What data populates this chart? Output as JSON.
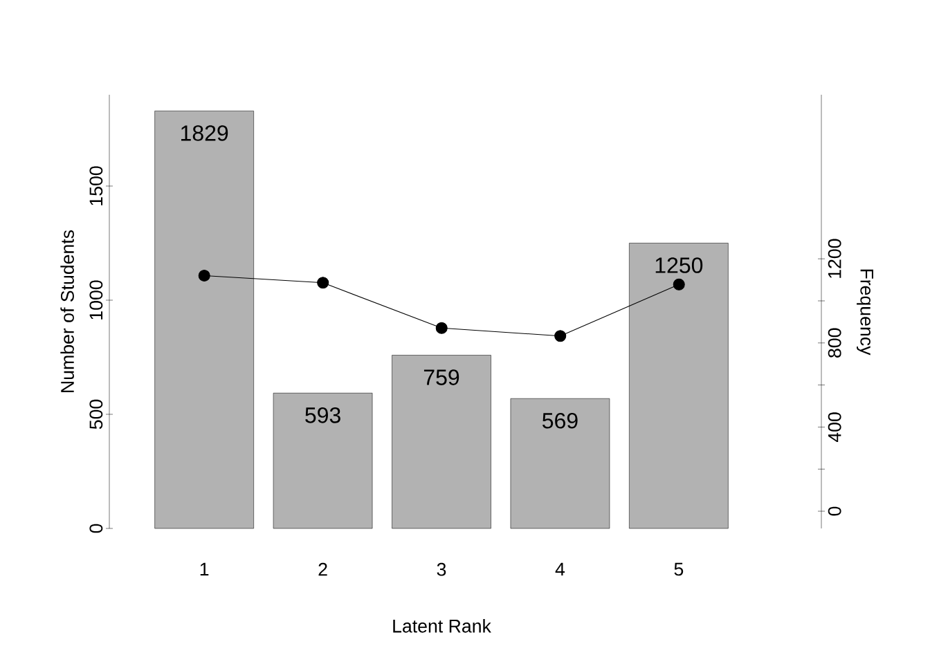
{
  "chart_data": {
    "type": "bar",
    "xlabel": "Latent Rank",
    "ylabel": "Number of Students",
    "y2label": "Frequency",
    "categories": [
      "1",
      "2",
      "3",
      "4",
      "5"
    ],
    "series": [
      {
        "color": "#b2b2b2",
        "values": [
          1829,
          593,
          759,
          569,
          1250
        ],
        "data_labels": true
      },
      {
        "type": "line",
        "axis": "y2",
        "color": "#000000",
        "marker": "circle",
        "values": [
          1120,
          1086,
          871,
          833,
          1078
        ]
      }
    ],
    "ylim": [
      0,
      1900
    ],
    "yticks": [
      0,
      500,
      1000,
      1500
    ],
    "y2lim": [
      -82,
      1980
    ],
    "y2ticks": [
      0,
      400,
      800,
      1200
    ]
  }
}
